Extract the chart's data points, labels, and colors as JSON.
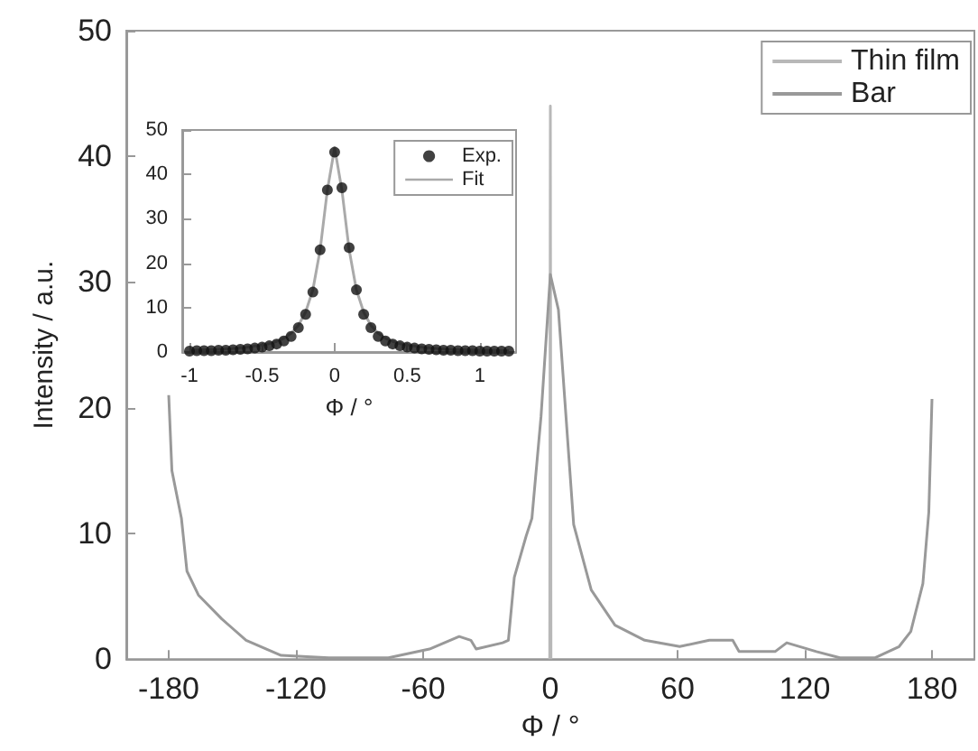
{
  "chart_data": [
    {
      "type": "line",
      "xlabel": "Φ / °",
      "ylabel": "Intensity / a.u.",
      "xlim": [
        -200,
        200
      ],
      "xticks": [
        -180,
        -120,
        -60,
        0,
        60,
        120,
        180
      ],
      "ylim": [
        0,
        50
      ],
      "yticks": [
        0,
        10,
        20,
        30,
        40,
        50
      ],
      "grid": false,
      "legend": "top right",
      "series": [
        {
          "name": "Thin film",
          "color": "#b8b8b8",
          "x": [
            -0.3,
            0,
            0.3
          ],
          "values": [
            0,
            44,
            0
          ]
        },
        {
          "name": "Bar",
          "color": "#999999",
          "x": [
            -180,
            -178.5,
            -174,
            -171.4,
            -166,
            -155,
            -143.5,
            -127,
            -104.5,
            -76.4,
            -57,
            -43,
            -37.5,
            -35,
            -22.5,
            -19.8,
            -17,
            -11.4,
            -8.7,
            -4.4,
            0,
            3.8,
            11,
            19.3,
            30.5,
            44.5,
            61,
            75,
            86,
            89,
            106,
            111.5,
            125.5,
            136.6,
            153,
            164.5,
            170,
            175.7,
            178.5,
            180
          ],
          "values": [
            21,
            15,
            11.2,
            7,
            5.1,
            3.2,
            1.5,
            0.3,
            0.1,
            0.1,
            0.8,
            1.8,
            1.5,
            0.8,
            1.3,
            1.5,
            6.5,
            9.8,
            11.2,
            19.3,
            30.6,
            27.8,
            10.7,
            5.5,
            2.7,
            1.5,
            1,
            1.5,
            1.5,
            0.6,
            0.6,
            1.3,
            0.6,
            0.1,
            0.1,
            1,
            2.2,
            6,
            11.7,
            20.7
          ]
        }
      ]
    },
    {
      "type": "scatter",
      "xlabel": "Φ / °",
      "xlim": [
        -1.05,
        1.25
      ],
      "xticks": [
        -1,
        -0.5,
        0,
        0.5,
        1
      ],
      "ylim": [
        0,
        50
      ],
      "yticks": [
        0,
        10,
        20,
        30,
        40,
        50
      ],
      "grid": false,
      "legend": "top right",
      "series": [
        {
          "name": "Exp.",
          "color": "#111111",
          "x": [
            -1,
            -0.95,
            -0.9,
            -0.85,
            -0.8,
            -0.75,
            -0.7,
            -0.65,
            -0.6,
            -0.55,
            -0.5,
            -0.45,
            -0.4,
            -0.35,
            -0.3,
            -0.25,
            -0.2,
            -0.15,
            -0.1,
            -0.05,
            0,
            0.05,
            0.1,
            0.15,
            0.2,
            0.25,
            0.3,
            0.35,
            0.4,
            0.45,
            0.5,
            0.55,
            0.6,
            0.65,
            0.7,
            0.75,
            0.8,
            0.85,
            0.9,
            0.95,
            1,
            1.05,
            1.1,
            1.15,
            1.2
          ],
          "values": [
            0.2,
            0.3,
            0.3,
            0.3,
            0.4,
            0.4,
            0.5,
            0.6,
            0.7,
            0.9,
            1.1,
            1.4,
            1.8,
            2.5,
            3.5,
            5.5,
            8.5,
            13.5,
            23,
            36.5,
            45,
            37,
            23.5,
            14,
            8.5,
            5.5,
            3.5,
            2.5,
            1.8,
            1.4,
            1.1,
            0.9,
            0.7,
            0.6,
            0.5,
            0.4,
            0.4,
            0.3,
            0.3,
            0.3,
            0.2,
            0.2,
            0.2,
            0.2,
            0.2
          ]
        },
        {
          "name": "Fit",
          "type": "line",
          "color": "#aaaaaa",
          "x": [
            -1,
            -0.9,
            -0.8,
            -0.7,
            -0.6,
            -0.5,
            -0.45,
            -0.4,
            -0.35,
            -0.3,
            -0.25,
            -0.2,
            -0.15,
            -0.1,
            -0.05,
            0,
            0.05,
            0.1,
            0.15,
            0.2,
            0.25,
            0.3,
            0.35,
            0.4,
            0.45,
            0.5,
            0.6,
            0.7,
            0.8,
            0.9,
            1,
            1.2
          ],
          "values": [
            0.4,
            0.5,
            0.6,
            0.8,
            1.1,
            1.6,
            1.9,
            2.4,
            3.1,
            4.2,
            6,
            9,
            14,
            23,
            36.5,
            46,
            36.5,
            23,
            14,
            9,
            6,
            4.2,
            3.1,
            2.4,
            1.9,
            1.6,
            1.1,
            0.8,
            0.6,
            0.5,
            0.4,
            0.3
          ]
        }
      ]
    }
  ]
}
